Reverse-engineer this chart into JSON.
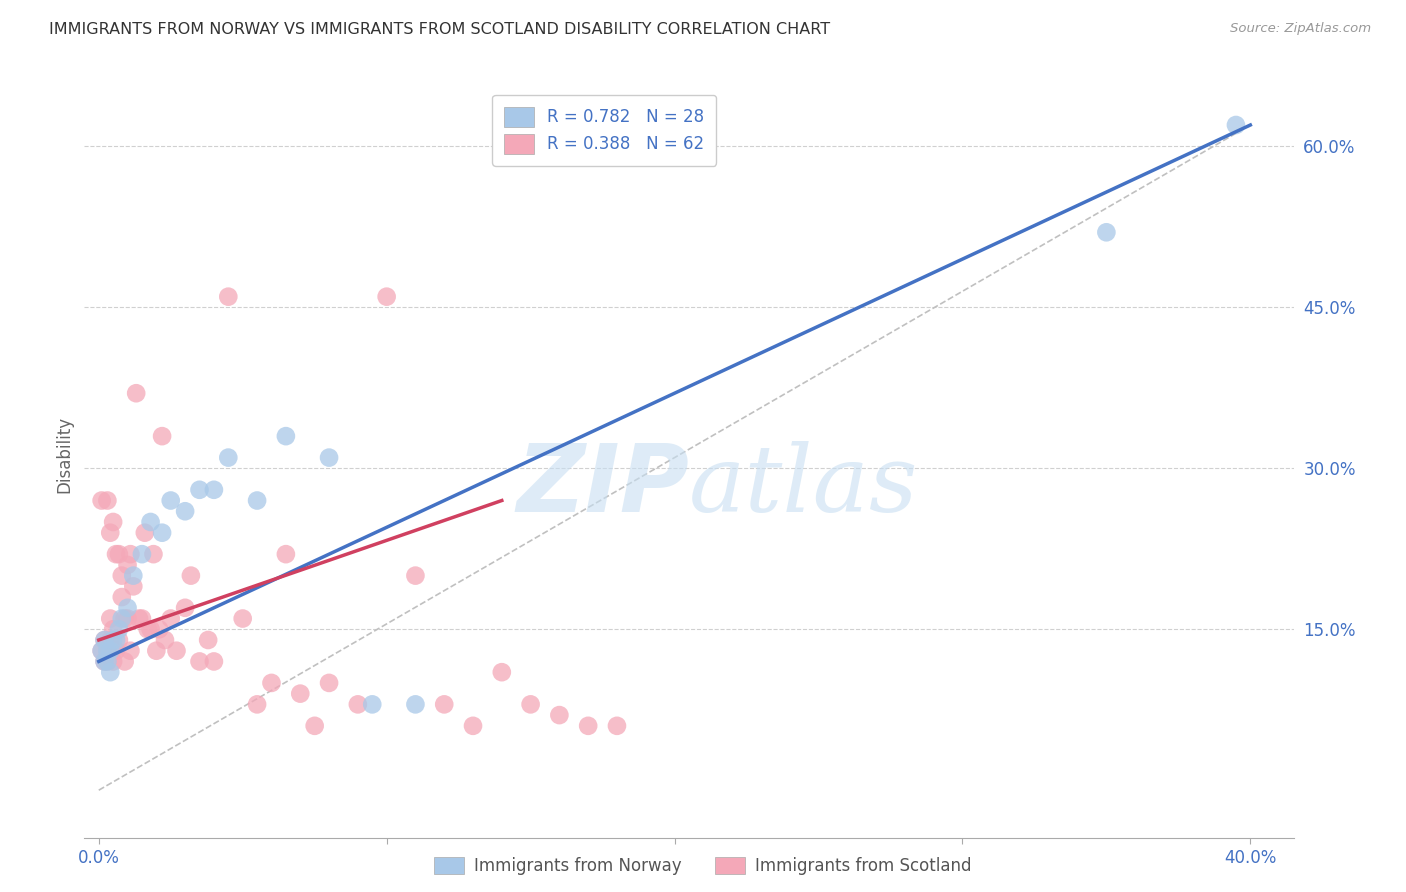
{
  "title": "IMMIGRANTS FROM NORWAY VS IMMIGRANTS FROM SCOTLAND DISABILITY CORRELATION CHART",
  "source": "Source: ZipAtlas.com",
  "ylabel": "Disability",
  "y_ticks": [
    0.15,
    0.3,
    0.45,
    0.6
  ],
  "y_tick_labels": [
    "15.0%",
    "30.0%",
    "45.0%",
    "60.0%"
  ],
  "x_tick_positions": [
    0.0,
    0.1,
    0.2,
    0.3,
    0.4
  ],
  "x_tick_labels": [
    "0.0%",
    "",
    "",
    "",
    "40.0%"
  ],
  "xlim": [
    -0.005,
    0.415
  ],
  "ylim": [
    -0.045,
    0.67
  ],
  "norway_R": 0.782,
  "norway_N": 28,
  "scotland_R": 0.388,
  "scotland_N": 62,
  "norway_color": "#a8c8e8",
  "scotland_color": "#f4a8b8",
  "norway_line_color": "#4472c4",
  "scotland_line_color": "#d04060",
  "legend_label_norway": "Immigrants from Norway",
  "legend_label_scotland": "Immigrants from Scotland",
  "watermark_zip": "ZIP",
  "watermark_atlas": "atlas",
  "title_color": "#333333",
  "axis_label_color": "#666666",
  "tick_color": "#4472c4",
  "grid_color": "#d0d0d0",
  "norway_x": [
    0.001,
    0.002,
    0.002,
    0.003,
    0.003,
    0.004,
    0.004,
    0.005,
    0.006,
    0.007,
    0.008,
    0.01,
    0.012,
    0.015,
    0.018,
    0.022,
    0.025,
    0.03,
    0.035,
    0.04,
    0.045,
    0.055,
    0.065,
    0.08,
    0.095,
    0.11,
    0.35,
    0.395
  ],
  "norway_y": [
    0.13,
    0.14,
    0.12,
    0.13,
    0.12,
    0.13,
    0.11,
    0.14,
    0.14,
    0.15,
    0.16,
    0.17,
    0.2,
    0.22,
    0.25,
    0.24,
    0.27,
    0.26,
    0.28,
    0.28,
    0.31,
    0.27,
    0.33,
    0.31,
    0.08,
    0.08,
    0.52,
    0.62
  ],
  "scotland_x": [
    0.001,
    0.001,
    0.002,
    0.002,
    0.003,
    0.003,
    0.003,
    0.004,
    0.004,
    0.004,
    0.005,
    0.005,
    0.005,
    0.006,
    0.006,
    0.007,
    0.007,
    0.008,
    0.008,
    0.009,
    0.009,
    0.01,
    0.01,
    0.011,
    0.011,
    0.012,
    0.013,
    0.014,
    0.015,
    0.016,
    0.017,
    0.018,
    0.019,
    0.02,
    0.021,
    0.022,
    0.023,
    0.025,
    0.027,
    0.03,
    0.032,
    0.035,
    0.038,
    0.04,
    0.045,
    0.05,
    0.055,
    0.06,
    0.065,
    0.07,
    0.075,
    0.08,
    0.09,
    0.1,
    0.11,
    0.12,
    0.13,
    0.14,
    0.15,
    0.16,
    0.17,
    0.18
  ],
  "scotland_y": [
    0.27,
    0.13,
    0.14,
    0.12,
    0.27,
    0.13,
    0.12,
    0.24,
    0.14,
    0.16,
    0.25,
    0.15,
    0.12,
    0.22,
    0.13,
    0.14,
    0.22,
    0.18,
    0.2,
    0.16,
    0.12,
    0.21,
    0.16,
    0.13,
    0.22,
    0.19,
    0.37,
    0.16,
    0.16,
    0.24,
    0.15,
    0.15,
    0.22,
    0.13,
    0.15,
    0.33,
    0.14,
    0.16,
    0.13,
    0.17,
    0.2,
    0.12,
    0.14,
    0.12,
    0.46,
    0.16,
    0.08,
    0.1,
    0.22,
    0.09,
    0.06,
    0.1,
    0.08,
    0.46,
    0.2,
    0.08,
    0.06,
    0.11,
    0.08,
    0.07,
    0.06,
    0.06
  ]
}
